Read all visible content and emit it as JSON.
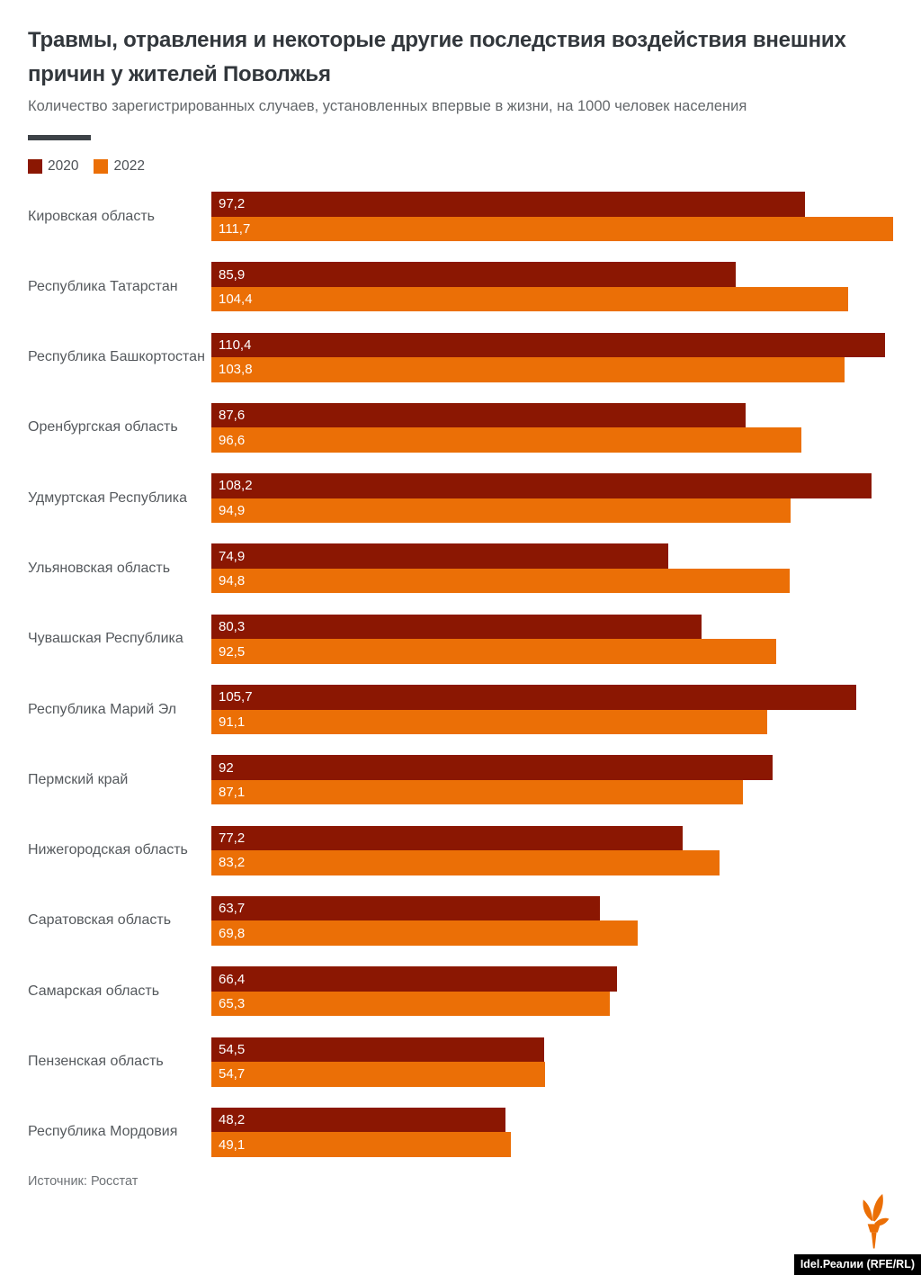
{
  "header": {
    "title_line1": "Травмы, отравления и некоторые другие последствия воздействия внешних",
    "title_line2": "причин у жителей Поволжья",
    "subtitle": "Количество зарегистрированных случаев, установленных впервые в жизни, на 1000 человек населения"
  },
  "legend": {
    "items": [
      {
        "label": "2020",
        "color": "#8b1702"
      },
      {
        "label": "2022",
        "color": "#eb6f06"
      }
    ]
  },
  "chart_data": {
    "type": "bar",
    "orientation": "horizontal",
    "title": "Травмы, отравления и некоторые другие последствия воздействия внешних причин у жителей Поволжья",
    "subtitle": "Количество зарегистрированных случаев, установленных впервые в жизни, на 1000 человек населения",
    "xlim": [
      0,
      111.7
    ],
    "grid": false,
    "legend_position": "top-left",
    "categories": [
      "Кировская область",
      "Республика Татарстан",
      "Республика Башкортостан",
      "Оренбургская область",
      "Удмуртская Республика",
      "Ульяновская область",
      "Чувашская Республика",
      "Республика Марий Эл",
      "Пермский край",
      "Нижегородская область",
      "Саратовская область",
      "Самарская область",
      "Пензенская область",
      "Республика Мордовия"
    ],
    "series": [
      {
        "name": "2020",
        "color": "#8b1702",
        "values": [
          97.2,
          85.9,
          110.4,
          87.6,
          108.2,
          74.9,
          80.3,
          105.7,
          92,
          77.2,
          63.7,
          66.4,
          54.5,
          48.2
        ],
        "labels": [
          "97,2",
          "85,9",
          "110,4",
          "87,6",
          "108,2",
          "74,9",
          "80,3",
          "105,7",
          "92",
          "77,2",
          "63,7",
          "66,4",
          "54,5",
          "48,2"
        ]
      },
      {
        "name": "2022",
        "color": "#eb6f06",
        "values": [
          111.7,
          104.4,
          103.8,
          96.6,
          94.9,
          94.8,
          92.5,
          91.1,
          87.1,
          83.2,
          69.8,
          65.3,
          54.7,
          49.1
        ],
        "labels": [
          "111,7",
          "104,4",
          "103,8",
          "96,6",
          "94,9",
          "94,8",
          "92,5",
          "91,1",
          "87,1",
          "83,2",
          "69,8",
          "65,3",
          "54,7",
          "49,1"
        ]
      }
    ]
  },
  "footer": {
    "source": "Источник: Росстат",
    "badge": "Idel.Реалии (RFE/RL)",
    "logo": "rferl-torch-icon",
    "logo_color": "#eb6f06"
  },
  "colors": {
    "title": "#32373c",
    "subtitle": "#63676a",
    "divider": "#3d4247",
    "category_label": "#55595d",
    "bar_value_text": "#ffffff",
    "badge_bg": "#000000"
  }
}
